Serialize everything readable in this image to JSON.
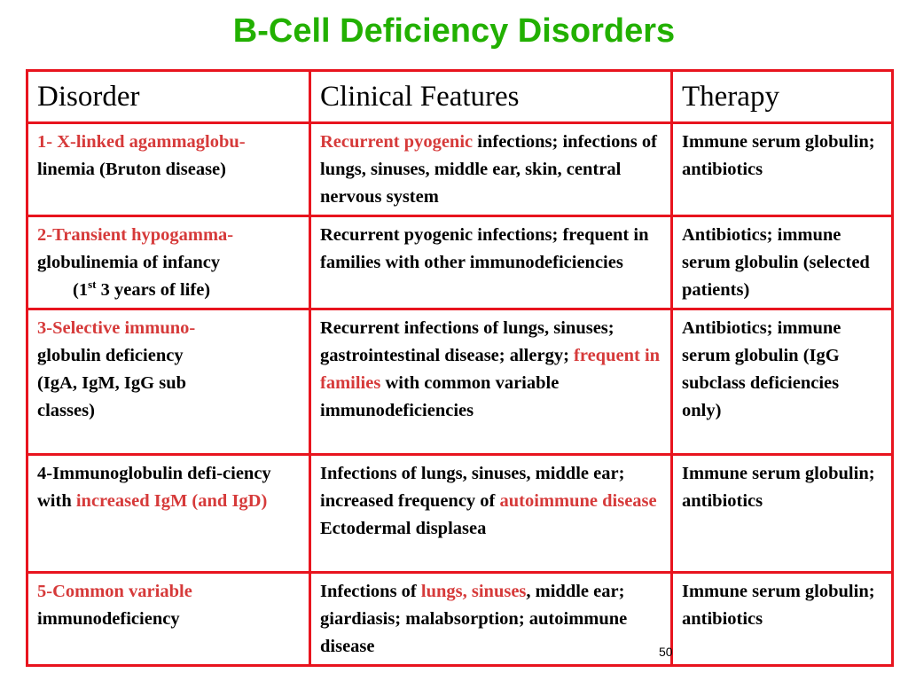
{
  "title": "B-Cell Deficiency Disorders",
  "headers": {
    "disorder": "Disorder",
    "features": "Clinical Features",
    "therapy": "Therapy"
  },
  "rows": [
    {
      "disorder": {
        "red": "1- X-linked agammaglobu-",
        "black": "linemia (Bruton disease)"
      },
      "features": {
        "red": "Recurrent pyogenic",
        "black": " infections; infections of lungs, sinuses, middle ear, skin, central nervous system"
      },
      "therapy": "Immune serum globulin;  antibiotics"
    },
    {
      "disorder": {
        "red": "2-Transient hypogamma-",
        "black": "globulinemia of infancy",
        "paren_open": "(1",
        "sup": "st",
        "paren_rest": " 3 years of life)"
      },
      "features": "Recurrent pyogenic infections; frequent in families with other immunodeficiencies",
      "therapy": "Antibiotics; immune serum globulin (selected patients)"
    },
    {
      "disorder": {
        "red": "3-Selective immuno-",
        "black": "globulin deficiency (IgA, IgM, IgG sub classes)"
      },
      "features": {
        "pre": "Recurrent infections of lungs, sinuses; gastrointestinal disease; allergy; ",
        "red": "frequent in families",
        "post": " with common variable immunodeficiencies"
      },
      "therapy": "Antibiotics; immune serum globulin (IgG subclass deficiencies only)"
    },
    {
      "disorder": {
        "black": "4-Immunoglobulin defi-ciency with ",
        "red": "increased IgM (and IgD)"
      },
      "features": {
        "pre": "Infections of lungs, sinuses, middle ear; increased frequency of ",
        "red": "autoimmune disease",
        "post": " Ectodermal displasea"
      },
      "therapy": "Immune serum globulin; antibiotics"
    },
    {
      "disorder": {
        "red": "5-Common variable",
        "black": "immunodeficiency"
      },
      "features": {
        "pre": "Infections of ",
        "red": "lungs, sinuses",
        "post": ", middle ear; giardiasis; malabsorption; autoimmune disease"
      },
      "therapy": "Immune serum globulin; antibiotics"
    }
  ],
  "page_number": "50",
  "colors": {
    "title": "#22b000",
    "border": "#e8141e",
    "accent_text": "#d63a3a"
  }
}
